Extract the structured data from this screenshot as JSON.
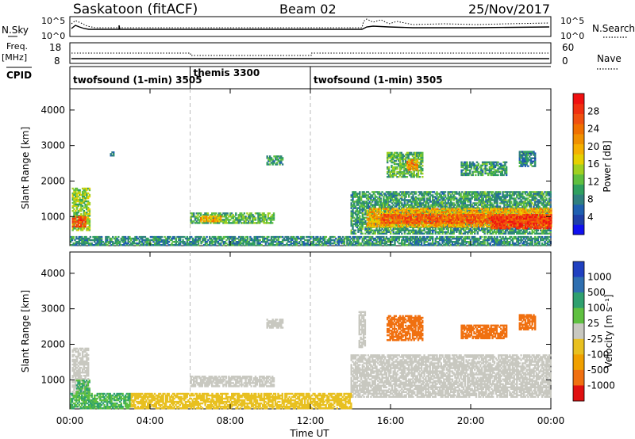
{
  "header": {
    "station": "Saskatoon (fitACF)",
    "beam": "Beam 02",
    "date": "25/Nov/2017"
  },
  "panels": {
    "noise": {
      "left_label": "N.Sky",
      "right_label": "N.Search",
      "left_ticks": [
        "10^5",
        "10^0"
      ],
      "right_ticks": [
        "10^5",
        "10^0"
      ]
    },
    "freq": {
      "left_label_1": "Freq.",
      "left_label_2": "[MHz]",
      "right_label": "Nave",
      "left_ticks": [
        "18",
        "8"
      ],
      "right_ticks": [
        "60",
        "0"
      ]
    },
    "cpid": {
      "label": "CPID",
      "segments": [
        {
          "name": "twofsound (1-min) 3505",
          "start_hr": 0
        },
        {
          "name": "themis 3300",
          "start_hr": 6
        },
        {
          "name": "twofsound (1-min) 3505",
          "start_hr": 12
        }
      ]
    }
  },
  "chart_data": [
    {
      "type": "heatmap",
      "name": "power",
      "ylabel": "Slant Range [km]",
      "ylim": [
        180,
        4600
      ],
      "yticks": [
        1000,
        2000,
        3000,
        4000
      ],
      "x_range_hours": [
        0,
        24
      ],
      "colorbar": {
        "label": "Power [dB]",
        "range": [
          0,
          32
        ],
        "ticks": [
          "4",
          "8",
          "12",
          "16",
          "20",
          "24",
          "28"
        ],
        "tick_values": [
          4,
          8,
          12,
          16,
          20,
          24,
          28
        ],
        "colors": [
          "#1010f0",
          "#1f3fa8",
          "#1f5fb0",
          "#2f7f7f",
          "#2f9f5f",
          "#5fbf3f",
          "#a0d020",
          "#e6d000",
          "#f5b000",
          "#f09000",
          "#f07000",
          "#f05010",
          "#f03010",
          "#f01010"
        ]
      },
      "regions": [
        {
          "t0": 0.1,
          "t1": 1.0,
          "r0": 600,
          "r1": 1800,
          "level": 14
        },
        {
          "t0": 0.1,
          "t1": 0.8,
          "r0": 700,
          "r1": 1000,
          "level": 26
        },
        {
          "t0": 2.0,
          "t1": 2.2,
          "r0": 2700,
          "r1": 2800,
          "level": 8
        },
        {
          "t0": 6.0,
          "t1": 10.2,
          "r0": 800,
          "r1": 1100,
          "level": 12
        },
        {
          "t0": 6.5,
          "t1": 7.5,
          "r0": 850,
          "r1": 1000,
          "level": 20
        },
        {
          "t0": 9.8,
          "t1": 10.6,
          "r0": 2450,
          "r1": 2700,
          "level": 10
        },
        {
          "t0": 14.0,
          "t1": 24.0,
          "r0": 500,
          "r1": 1700,
          "level": 10
        },
        {
          "t0": 14.8,
          "t1": 24.0,
          "r0": 700,
          "r1": 1200,
          "level": 20
        },
        {
          "t0": 15.5,
          "t1": 24.0,
          "r0": 800,
          "r1": 1050,
          "level": 26
        },
        {
          "t0": 21.0,
          "t1": 24.0,
          "r0": 650,
          "r1": 1000,
          "level": 28
        },
        {
          "t0": 15.8,
          "t1": 17.6,
          "r0": 2100,
          "r1": 2800,
          "level": 12
        },
        {
          "t0": 16.8,
          "t1": 17.3,
          "r0": 2300,
          "r1": 2600,
          "level": 22
        },
        {
          "t0": 19.5,
          "t1": 21.8,
          "r0": 2150,
          "r1": 2550,
          "level": 10
        },
        {
          "t0": 22.4,
          "t1": 23.2,
          "r0": 2400,
          "r1": 2850,
          "level": 8
        },
        {
          "t0": 0.0,
          "t1": 24.0,
          "r0": 180,
          "r1": 450,
          "level": 9
        }
      ]
    },
    {
      "type": "heatmap",
      "name": "velocity",
      "ylabel": "Slant Range [km]",
      "xlabel": "Time UT",
      "ylim": [
        180,
        4600
      ],
      "yticks": [
        1000,
        2000,
        3000,
        4000
      ],
      "x_range_hours": [
        0,
        24
      ],
      "xticks": [
        "00:00",
        "04:00",
        "08:00",
        "12:00",
        "16:00",
        "20:00",
        "00:00"
      ],
      "colorbar": {
        "label": "Velocity [m s⁻¹]",
        "ticks": [
          "1000",
          "500",
          "100",
          "25",
          "-25",
          "-100",
          "-500",
          "-1000"
        ],
        "colors": [
          "#2040c0",
          "#2f6fb0",
          "#2fa06f",
          "#5fc040",
          "#a0d060",
          "#c8c8c0",
          "#e8c020",
          "#f0a000",
          "#f07010",
          "#f03010",
          "#e01010"
        ]
      },
      "regions": [
        {
          "t0": 0.1,
          "t1": 0.9,
          "r0": 600,
          "r1": 1900,
          "level": 0
        },
        {
          "t0": 0.3,
          "t1": 1.0,
          "r0": 600,
          "r1": 1000,
          "level": 60
        },
        {
          "t0": 6.0,
          "t1": 10.2,
          "r0": 800,
          "r1": 1100,
          "level": 0
        },
        {
          "t0": 9.8,
          "t1": 10.6,
          "r0": 2450,
          "r1": 2700,
          "level": 0
        },
        {
          "t0": 14.0,
          "t1": 24.0,
          "r0": 500,
          "r1": 1700,
          "level": 0
        },
        {
          "t0": 14.4,
          "t1": 14.7,
          "r0": 1900,
          "r1": 2900,
          "level": 0
        },
        {
          "t0": 15.8,
          "t1": 17.6,
          "r0": 2100,
          "r1": 2800,
          "level": -200
        },
        {
          "t0": 19.5,
          "t1": 21.8,
          "r0": 2150,
          "r1": 2550,
          "level": -200
        },
        {
          "t0": 22.4,
          "t1": 23.2,
          "r0": 2400,
          "r1": 2850,
          "level": -120
        },
        {
          "t0": 3.0,
          "t1": 14.0,
          "r0": 180,
          "r1": 600,
          "level": -60
        },
        {
          "t0": 0.0,
          "t1": 3.0,
          "r0": 180,
          "r1": 600,
          "level": 60
        }
      ]
    }
  ]
}
